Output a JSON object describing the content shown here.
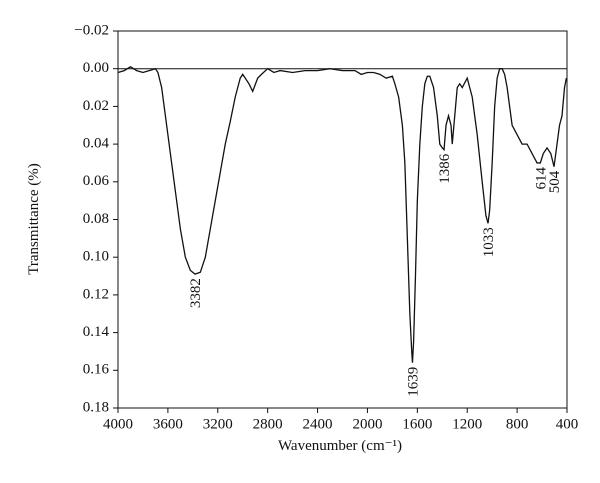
{
  "chart_data": {
    "type": "line",
    "x_label": "Wavenumber (cm⁻¹)",
    "y_label": "Transmittance (%)",
    "xlim": [
      4000,
      400
    ],
    "xticks": [
      4000,
      3600,
      3200,
      2800,
      2400,
      2000,
      1600,
      1200,
      800,
      400
    ],
    "ylim": [
      -0.02,
      0.18
    ],
    "y_inverted": true,
    "yticks": [
      {
        "value": -0.02,
        "label": "−0.02"
      },
      {
        "value": 0,
        "label": "0.00"
      },
      0.02,
      0.04,
      0.06,
      0.08,
      {
        "value": 0.1,
        "label": "0.10"
      },
      0.12,
      0.14,
      0.16,
      0.18
    ],
    "zero_line": true,
    "color": "#111111",
    "x": [
      4000,
      3950,
      3900,
      3850,
      3800,
      3750,
      3700,
      3680,
      3650,
      3620,
      3580,
      3540,
      3500,
      3460,
      3420,
      3382,
      3340,
      3300,
      3260,
      3220,
      3180,
      3140,
      3100,
      3060,
      3020,
      3000,
      2980,
      2950,
      2920,
      2880,
      2850,
      2800,
      2750,
      2700,
      2600,
      2500,
      2400,
      2300,
      2200,
      2100,
      2050,
      2000,
      1950,
      1900,
      1850,
      1800,
      1780,
      1750,
      1720,
      1700,
      1680,
      1660,
      1645,
      1639,
      1630,
      1615,
      1600,
      1580,
      1560,
      1540,
      1520,
      1500,
      1470,
      1440,
      1420,
      1400,
      1386,
      1370,
      1350,
      1330,
      1320,
      1300,
      1280,
      1260,
      1240,
      1200,
      1160,
      1120,
      1080,
      1050,
      1033,
      1020,
      1000,
      980,
      960,
      940,
      920,
      900,
      880,
      860,
      840,
      800,
      760,
      720,
      680,
      640,
      614,
      590,
      560,
      530,
      504,
      480,
      460,
      440,
      420,
      405
    ],
    "values": [
      0.002,
      0.001,
      -0.001,
      0.001,
      0.002,
      0.001,
      0.0,
      0.002,
      0.01,
      0.025,
      0.045,
      0.065,
      0.085,
      0.1,
      0.107,
      0.109,
      0.108,
      0.1,
      0.085,
      0.07,
      0.055,
      0.04,
      0.028,
      0.015,
      0.005,
      0.003,
      0.005,
      0.008,
      0.012,
      0.005,
      0.003,
      0.0,
      0.002,
      0.001,
      0.002,
      0.001,
      0.001,
      0.0,
      0.001,
      0.001,
      0.003,
      0.002,
      0.002,
      0.003,
      0.005,
      0.004,
      0.008,
      0.015,
      0.03,
      0.05,
      0.09,
      0.13,
      0.15,
      0.156,
      0.145,
      0.11,
      0.07,
      0.04,
      0.02,
      0.008,
      0.004,
      0.004,
      0.01,
      0.025,
      0.04,
      0.042,
      0.043,
      0.03,
      0.025,
      0.03,
      0.04,
      0.025,
      0.01,
      0.008,
      0.01,
      0.005,
      0.015,
      0.035,
      0.06,
      0.078,
      0.082,
      0.075,
      0.05,
      0.02,
      0.005,
      0.0,
      0.0,
      0.003,
      0.01,
      0.02,
      0.03,
      0.035,
      0.04,
      0.04,
      0.045,
      0.05,
      0.05,
      0.045,
      0.042,
      0.045,
      0.052,
      0.04,
      0.03,
      0.025,
      0.01,
      0.005
    ],
    "annotations": [
      {
        "label": "3382",
        "x": 3382
      },
      {
        "label": "1639",
        "x": 1639
      },
      {
        "label": "1386",
        "x": 1386
      },
      {
        "label": "1033",
        "x": 1033
      },
      {
        "label": "614",
        "x": 614
      },
      {
        "label": "504",
        "x": 504
      }
    ]
  }
}
